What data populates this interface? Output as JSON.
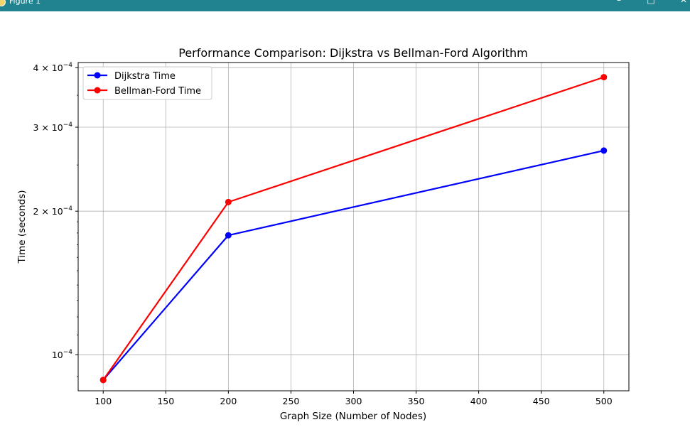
{
  "window": {
    "title": "Figure 1",
    "app_icon": "matplotlib-icon",
    "controls": {
      "minimize": "–",
      "maximize": "□",
      "close": "✕"
    },
    "titlebar_color": "#218290"
  },
  "chart_data": {
    "type": "line",
    "title": "Performance Comparison: Dijkstra vs Bellman-Ford Algorithm",
    "xlabel": "Graph Size (Number of Nodes)",
    "ylabel": "Time (seconds)",
    "x": [
      100,
      200,
      500
    ],
    "xlim": [
      80,
      520
    ],
    "ylim": [
      8.4e-05,
      0.00041
    ],
    "yscale": "log",
    "grid": true,
    "legend": "top-left",
    "x_ticks": [
      {
        "value": 100,
        "label": "100"
      },
      {
        "value": 150,
        "label": "150"
      },
      {
        "value": 200,
        "label": "200"
      },
      {
        "value": 250,
        "label": "250"
      },
      {
        "value": 300,
        "label": "300"
      },
      {
        "value": 350,
        "label": "350"
      },
      {
        "value": 400,
        "label": "400"
      },
      {
        "value": 450,
        "label": "450"
      },
      {
        "value": 500,
        "label": "500"
      }
    ],
    "y_ticks": [
      {
        "value": 0.0001,
        "mant": "",
        "exp": "−4",
        "base": "10"
      },
      {
        "value": 0.0002,
        "mant": "2 × ",
        "exp": "−4",
        "base": "10"
      },
      {
        "value": 0.0003,
        "mant": "3 × ",
        "exp": "−4",
        "base": "10"
      },
      {
        "value": 0.0004,
        "mant": "4 × ",
        "exp": "−4",
        "base": "10"
      }
    ],
    "series": [
      {
        "name": "Dijkstra Time",
        "color": "#0000ff",
        "values": [
          8.85e-05,
          0.000178,
          0.000268
        ]
      },
      {
        "name": "Bellman-Ford Time",
        "color": "#ff0000",
        "values": [
          8.85e-05,
          0.000209,
          0.000382
        ]
      }
    ]
  }
}
